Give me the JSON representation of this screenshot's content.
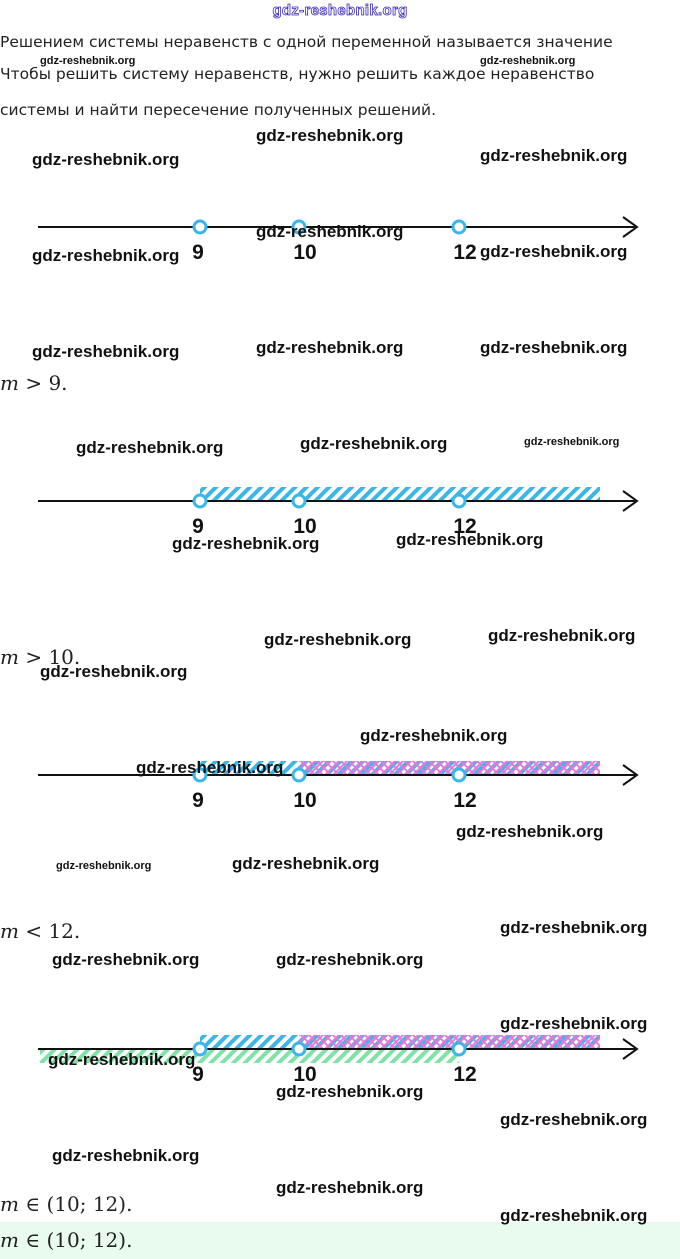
{
  "header": {
    "site": "gdz-reshebnik.org"
  },
  "intro": {
    "line1": "Решением системы неравенств с одной переменной называется значение",
    "line2": "Чтобы решить систему неравенств, нужно решить каждое неравенство",
    "line3": "системы и найти пересечение полученных решений."
  },
  "watermark_text": "gdz-reshebnik.org",
  "number_lines": [
    {
      "ticks": [
        "9",
        "10",
        "12"
      ],
      "shading": []
    },
    {
      "ticks": [
        "9",
        "10",
        "12"
      ],
      "shading": [
        {
          "from": 9,
          "to": "+inf",
          "color": "#3bb6e8",
          "pattern": "hatch"
        }
      ]
    },
    {
      "ticks": [
        "9",
        "10",
        "12"
      ],
      "shading": [
        {
          "from": 9,
          "to": "+inf",
          "color": "#3bb6e8",
          "pattern": "hatch"
        },
        {
          "from": 10,
          "to": "+inf",
          "color": "#e07ad8",
          "pattern": "cross"
        }
      ]
    },
    {
      "ticks": [
        "9",
        "10",
        "12"
      ],
      "shading": [
        {
          "from": 9,
          "to": "+inf",
          "color": "#3bb6e8",
          "pattern": "hatch"
        },
        {
          "from": 10,
          "to": "+inf",
          "color": "#e07ad8",
          "pattern": "cross"
        },
        {
          "from": "-inf",
          "to": 12,
          "color": "#7fe3a6",
          "pattern": "hatch"
        }
      ]
    }
  ],
  "steps": {
    "s1": {
      "var": "m",
      "rel": " > 9."
    },
    "s2": {
      "var": "m",
      "rel": " > 10."
    },
    "s3": {
      "var": "m",
      "rel": " < 12."
    },
    "s4": {
      "var": "m",
      "rel": " ∈ (10; 12)."
    }
  },
  "answer": {
    "var": "m",
    "rel": " ∈ (10; 12)."
  },
  "colors": {
    "blue": "#3bb6e8",
    "pink": "#e07ad8",
    "green": "#7fe3a6",
    "header_outline": "#3a2bb8",
    "answer_bg": "#e9fbee"
  }
}
